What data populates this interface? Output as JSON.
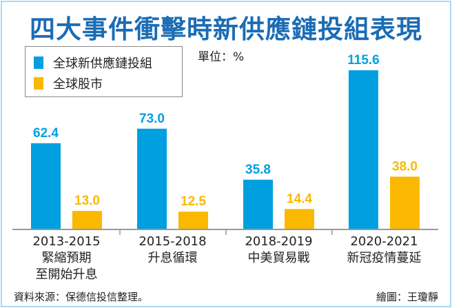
{
  "chart_data": {
    "type": "bar",
    "title": "四大事件衝擊時新供應鏈投組表現",
    "unit": "單位：%",
    "categories": [
      [
        "2013-2015",
        "緊縮預期",
        "至開始升息"
      ],
      [
        "2015-2018",
        "升息循環"
      ],
      [
        "2018-2019",
        "中美貿易戰"
      ],
      [
        "2020-2021",
        "新冠疫情蔓延"
      ]
    ],
    "series": [
      {
        "name": "全球新供應鏈投組",
        "color": "#00a0e0",
        "values": [
          62.4,
          73.0,
          35.8,
          115.6
        ]
      },
      {
        "name": "全球股市",
        "color": "#fbb800",
        "values": [
          13.0,
          12.5,
          14.4,
          38.0
        ]
      }
    ],
    "ylim": [
      0,
      120
    ],
    "grid": false,
    "legend_position": "top-left"
  },
  "footer": {
    "source": "資料來源：保德信投信整理。",
    "credit": "繪圖：王瓊靜"
  }
}
